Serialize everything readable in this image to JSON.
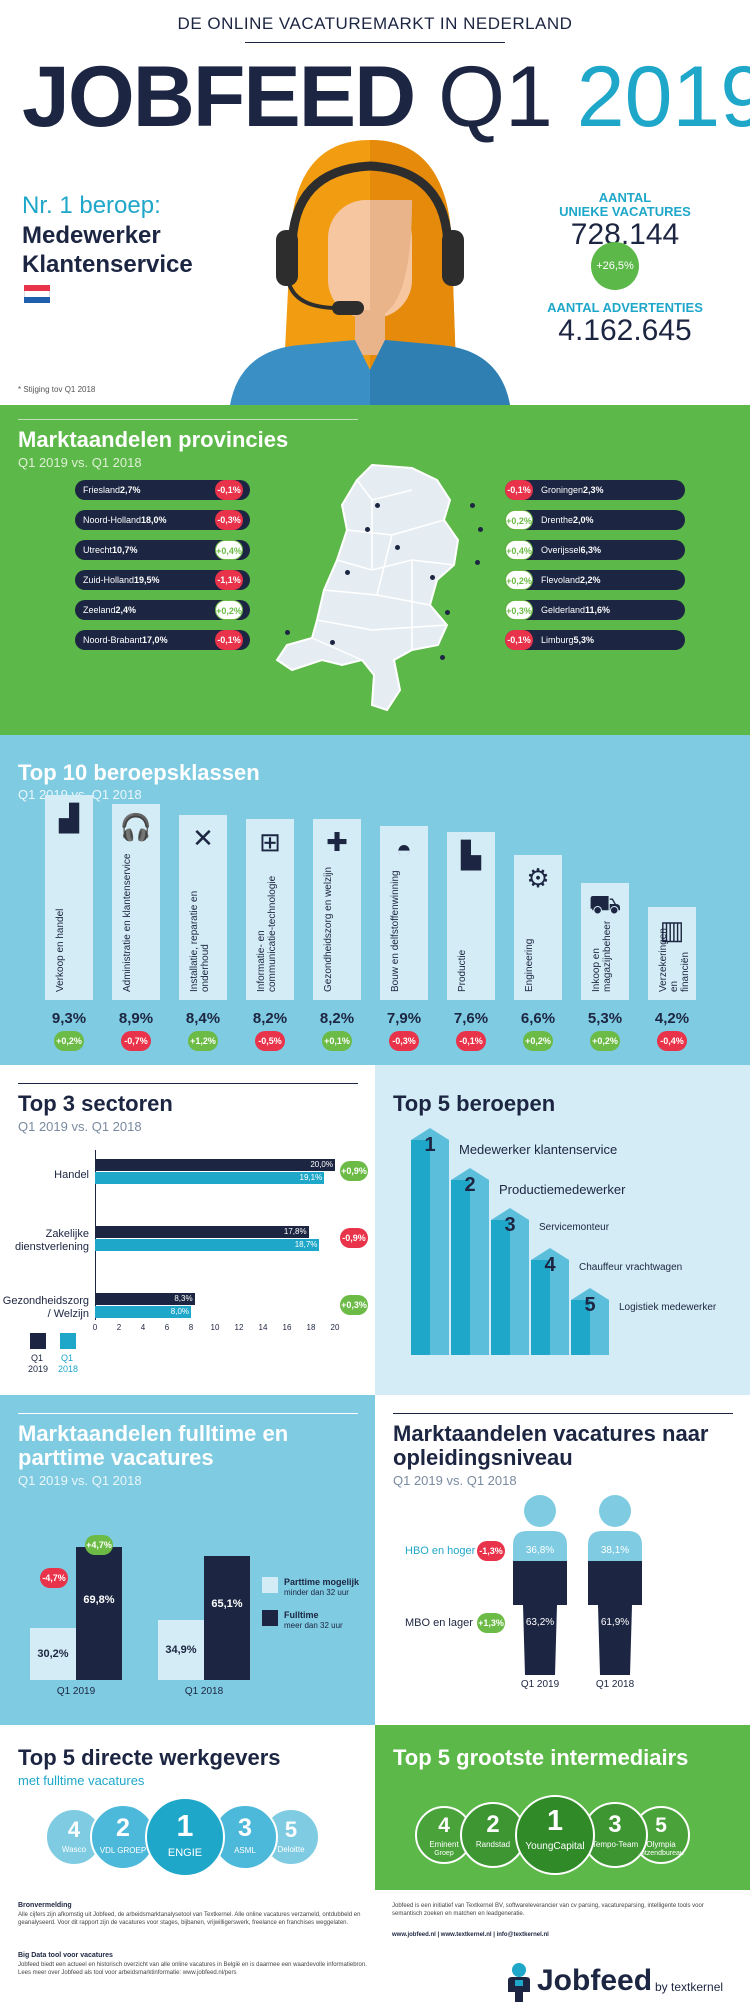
{
  "header": {
    "kicker": "DE ONLINE VACATUREMARKT IN NEDERLAND",
    "brand": "JOBFEED",
    "quarter": "Q1",
    "year": "2019",
    "top_job_label": "Nr. 1 beroep:",
    "top_job_line1": "Medewerker",
    "top_job_line2": "Klantenservice",
    "unique_label1": "AANTAL",
    "unique_label2": "UNIEKE VACATURES",
    "unique_value": "728.144",
    "unique_change": "+26,5%",
    "ads_label": "AANTAL ADVERTENTIES",
    "ads_value": "4.162.645",
    "footnote": "* Stijging tov Q1 2018"
  },
  "provinces": {
    "title": "Marktaandelen provincies",
    "subtitle": "Q1 2019 vs. Q1 2018",
    "left": [
      {
        "name": "Friesland",
        "value": "2,7%",
        "change": "-0,1%",
        "sign": "neg"
      },
      {
        "name": "Noord-Holland",
        "value": "18,0%",
        "change": "-0,3%",
        "sign": "neg"
      },
      {
        "name": "Utrecht",
        "value": "10,7%",
        "change": "+0,4%",
        "sign": "pos"
      },
      {
        "name": "Zuid-Holland",
        "value": "19,5%",
        "change": "-1,1%",
        "sign": "neg"
      },
      {
        "name": "Zeeland",
        "value": "2,4%",
        "change": "+0,2%",
        "sign": "pos"
      },
      {
        "name": "Noord-Brabant",
        "value": "17,0%",
        "change": "-0,1%",
        "sign": "neg"
      }
    ],
    "right": [
      {
        "name": "Groningen",
        "value": "2,3%",
        "change": "-0,1%",
        "sign": "neg"
      },
      {
        "name": "Drenthe",
        "value": "2,0%",
        "change": "+0,2%",
        "sign": "pos"
      },
      {
        "name": "Overijssel",
        "value": "6,3%",
        "change": "+0,4%",
        "sign": "pos"
      },
      {
        "name": "Flevoland",
        "value": "2,2%",
        "change": "+0,2%",
        "sign": "pos"
      },
      {
        "name": "Gelderland",
        "value": "11,6%",
        "change": "+0,3%",
        "sign": "pos"
      },
      {
        "name": "Limburg",
        "value": "5,3%",
        "change": "-0,1%",
        "sign": "neg"
      }
    ]
  },
  "classes": {
    "title": "Top 10 beroepsklassen",
    "subtitle": "Q1 2019 vs. Q1 2018",
    "items": [
      {
        "label": "Verkoop en handel",
        "value": "9,3%",
        "change": "+0,2%",
        "sign": "pos",
        "icon": "bar-chart-icon",
        "h": 9.3
      },
      {
        "label": "Administratie en klantenservice",
        "value": "8,9%",
        "change": "-0,7%",
        "sign": "neg",
        "icon": "headset-icon",
        "h": 8.9
      },
      {
        "label": "Installatie, reparatie en onderhoud",
        "value": "8,4%",
        "change": "+1,2%",
        "sign": "pos",
        "icon": "tools-icon",
        "h": 8.4
      },
      {
        "label": "Informatie- en communicatie-technologie",
        "value": "8,2%",
        "change": "-0,5%",
        "sign": "neg",
        "icon": "network-icon",
        "h": 8.2
      },
      {
        "label": "Gezondheidszorg en welzijn",
        "value": "8,2%",
        "change": "+0,1%",
        "sign": "pos",
        "icon": "medical-cross-icon",
        "h": 8.2
      },
      {
        "label": "Bouw en delfstoffenwinning",
        "value": "7,9%",
        "change": "-0,3%",
        "sign": "neg",
        "icon": "hardhat-icon",
        "h": 7.9
      },
      {
        "label": "Productie",
        "value": "7,6%",
        "change": "-0,1%",
        "sign": "neg",
        "icon": "factory-icon",
        "h": 7.6
      },
      {
        "label": "Engineering",
        "value": "6,6%",
        "change": "+0,2%",
        "sign": "pos",
        "icon": "gears-icon",
        "h": 6.6
      },
      {
        "label": "Inkoop en magazijnbeheer",
        "value": "5,3%",
        "change": "+0,2%",
        "sign": "pos",
        "icon": "hand-truck-icon",
        "h": 5.3
      },
      {
        "label": "Verzekeringen en financiën",
        "value": "4,2%",
        "change": "-0,4%",
        "sign": "neg",
        "icon": "bank-icon",
        "h": 4.2
      }
    ]
  },
  "sectors": {
    "title": "Top 3 sectoren",
    "subtitle": "Q1 2019 vs. Q1 2018",
    "legend_2019_line1": "Q1",
    "legend_2019_line2": "2019",
    "legend_2018_line1": "Q1",
    "legend_2018_line2": "2018",
    "ticks": [
      "0",
      "2",
      "4",
      "6",
      "8",
      "10",
      "12",
      "14",
      "16",
      "18",
      "20"
    ],
    "items": [
      {
        "label1": "Handel",
        "label2": "",
        "v2019": 20.0,
        "t2019": "20,0%",
        "v2018": 19.1,
        "t2018": "19,1%",
        "change": "+0,9%",
        "sign": "posg"
      },
      {
        "label1": "Zakelijke",
        "label2": "dienstverlening",
        "v2019": 17.8,
        "t2019": "17,8%",
        "v2018": 18.7,
        "t2018": "18,7%",
        "change": "-0,9%",
        "sign": "neg"
      },
      {
        "label1": "Gezondheidszorg",
        "label2": "/ Welzijn",
        "v2019": 8.3,
        "t2019": "8,3%",
        "v2018": 8.0,
        "t2018": "8,0%",
        "change": "+0,3%",
        "sign": "posg"
      }
    ]
  },
  "jobs": {
    "title": "Top 5 beroepen",
    "items": [
      {
        "rank": "1",
        "label": "Medewerker klantenservice"
      },
      {
        "rank": "2",
        "label": "Productiemedewerker"
      },
      {
        "rank": "3",
        "label": "Servicemonteur"
      },
      {
        "rank": "4",
        "label": "Chauffeur vrachtwagen"
      },
      {
        "rank": "5",
        "label": "Logistiek medewerker"
      }
    ]
  },
  "fulltime": {
    "title_line1": "Marktaandelen fulltime en",
    "title_line2": "parttime vacatures",
    "subtitle": "Q1 2019 vs. Q1 2018",
    "q2019": {
      "label": "Q1 2019",
      "part": "30,2%",
      "full": "69,8%",
      "part_v": 30.2,
      "full_v": 69.8,
      "part_change": "-4,7%",
      "full_change": "+4,7%"
    },
    "q2018": {
      "label": "Q1 2018",
      "part": "34,9%",
      "full": "65,1%",
      "part_v": 34.9,
      "full_v": 65.1
    },
    "legend_part_title": "Parttime mogelijk",
    "legend_part_sub": "minder dan 32 uur",
    "legend_full_title": "Fulltime",
    "legend_full_sub": "meer dan 32 uur"
  },
  "education": {
    "title_line1": "Marktaandelen vacatures naar",
    "title_line2": "opleidingsniveau",
    "subtitle": "Q1 2019 vs. Q1 2018",
    "hbo_label": "HBO en hoger",
    "hbo_change": "-1,3%",
    "mbo_label": "MBO en lager",
    "mbo_change": "+1,3%",
    "p2019": {
      "label": "Q1 2019",
      "hbo": "36,8%",
      "mbo": "63,2%"
    },
    "p2018": {
      "label": "Q1 2018",
      "hbo": "38,1%",
      "mbo": "61,9%"
    }
  },
  "employers": {
    "title": "Top 5 directe werkgevers",
    "subtitle": "met fulltime vacatures",
    "items": [
      {
        "rank": "4",
        "name": "Wasco"
      },
      {
        "rank": "2",
        "name": "VDL GROEP"
      },
      {
        "rank": "1",
        "name": "ENGIE"
      },
      {
        "rank": "3",
        "name": "ASML"
      },
      {
        "rank": "5",
        "name": "Deloitte"
      }
    ]
  },
  "intermediaries": {
    "title": "Top 5 grootste intermediairs",
    "items": [
      {
        "rank": "4",
        "name1": "Eminent",
        "name2": "Groep"
      },
      {
        "rank": "2",
        "name1": "Randstad",
        "name2": ""
      },
      {
        "rank": "1",
        "name1": "YoungCapital",
        "name2": ""
      },
      {
        "rank": "3",
        "name1": "Tempo-Team",
        "name2": ""
      },
      {
        "rank": "5",
        "name1": "Olympia",
        "name2": "Uitzendbureau"
      }
    ]
  },
  "footer": {
    "source_title": "Bronvermelding",
    "source_text": "Alle cijfers zijn afkomstig uit Jobfeed, de arbeidsmarktanalysetool van Textkernel. Alle online vacatures verzameld, ontdubbeld en geanalyseerd. Voor dit rapport zijn de vacatures voor stages, bijbanen, vrijwilligerswerk, freelance en franchises weggelaten.",
    "bigdata_title": "Big Data tool voor vacatures",
    "bigdata_text": "Jobfeed biedt een actueel en historisch overzicht van alle online vacatures in België en is daarmee een waardevolle informatiebron. Lees meer over Jobfeed als tool voor arbeidsmarktinformatie: www.jobfeed.nl/pers",
    "about_text": "Jobfeed is een initiatief van Textkernel BV, softwareleverancier van cv parsing, vacatureparsing, intelligente tools voor semantisch zoeken en matchen en leadgeneratie.",
    "links": "www.jobfeed.nl | www.textkernel.nl | info@textkernel.nl",
    "logo_name": "Jobfeed",
    "logo_by": "by textkernel"
  },
  "colors": {
    "navy": "#1c2541",
    "teal": "#1fa7c9",
    "green": "#5cb848",
    "lightblue": "#7fcbe2",
    "red": "#e8334a"
  }
}
